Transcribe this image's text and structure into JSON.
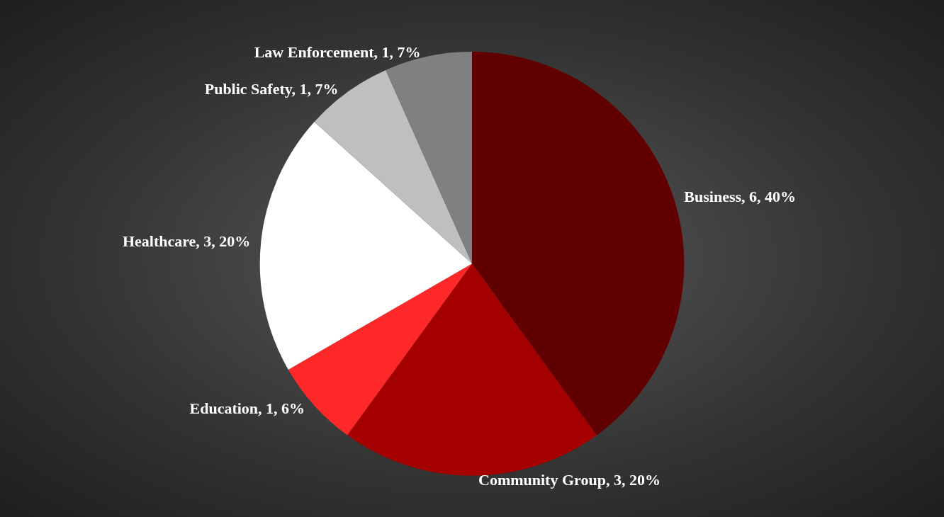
{
  "chart_data": {
    "type": "pie",
    "categories": [
      "Business",
      "Community Group",
      "Education",
      "Healthcare",
      "Public Safety",
      "Law Enforcement"
    ],
    "values": [
      6,
      3,
      1,
      3,
      1,
      1
    ],
    "value_labels": [
      "6, 40%",
      "3, 20%",
      "1, 6%",
      "3, 20%",
      "1, 7%",
      "1, 7%"
    ],
    "colors": [
      "#600000",
      "#a50000",
      "#ff2828",
      "#ffffff",
      "#bfbfbf",
      "#808080"
    ]
  }
}
